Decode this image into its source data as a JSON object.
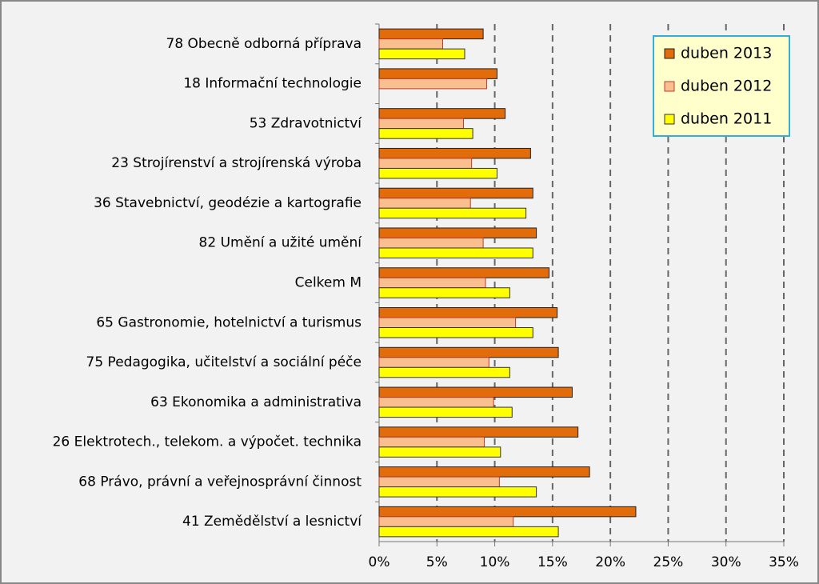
{
  "chart_data": {
    "type": "bar",
    "orientation": "horizontal",
    "categories": [
      "78 Obecně odborná příprava",
      "18 Informační technologie",
      "53 Zdravotnictví",
      "23 Strojírenství a strojírenská výroba",
      "36 Stavebnictví, geodézie a kartografie",
      "82 Umění a užité umění",
      "Celkem M",
      "65 Gastronomie, hotelnictví a turismus",
      "75 Pedagogika, učitelství a sociální péče",
      "63 Ekonomika a administrativa",
      "26 Elektrotech., telekom. a výpočet. technika",
      "68 Právo, právní a veřejnosprávní činnost",
      "41 Zemědělství a lesnictví"
    ],
    "series": [
      {
        "name": "duben 2013",
        "color": "#e26b0a",
        "values": [
          9.0,
          10.2,
          10.9,
          13.1,
          13.3,
          13.6,
          14.7,
          15.4,
          15.5,
          16.7,
          17.2,
          18.2,
          22.2
        ]
      },
      {
        "name": "duben 2012",
        "color": "#fabf8f",
        "values": [
          5.5,
          9.3,
          7.3,
          8.0,
          7.9,
          9.0,
          9.2,
          11.8,
          9.5,
          9.9,
          9.1,
          10.4,
          11.6
        ]
      },
      {
        "name": "duben 2011",
        "color": "#ffff00",
        "values": [
          7.4,
          null,
          8.1,
          10.2,
          12.7,
          13.3,
          11.3,
          13.3,
          11.3,
          11.5,
          10.5,
          13.6,
          15.5
        ]
      }
    ],
    "xlim": [
      0,
      35
    ],
    "xticks": [
      {
        "value": 0,
        "label": "0%"
      },
      {
        "value": 5,
        "label": "5%"
      },
      {
        "value": 10,
        "label": "10%"
      },
      {
        "value": 15,
        "label": "15%"
      },
      {
        "value": 20,
        "label": "20%"
      },
      {
        "value": 25,
        "label": "25%"
      },
      {
        "value": 30,
        "label": "30%"
      },
      {
        "value": 35,
        "label": "35%"
      }
    ],
    "grid": true,
    "legend": "top-right"
  }
}
